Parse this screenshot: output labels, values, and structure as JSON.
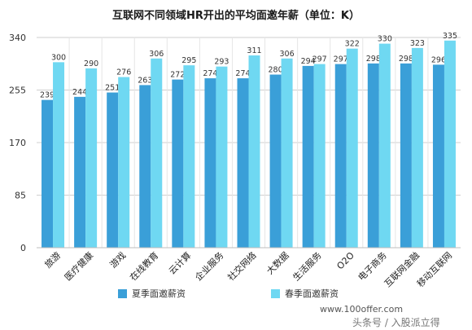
{
  "chart_data": {
    "type": "bar",
    "title": "互联网不同领域HR开出的平均面邀年薪（单位：K）",
    "categories": [
      "旅游",
      "医疗健康",
      "游戏",
      "在线教育",
      "云计算",
      "企业服务",
      "社交网络",
      "大数据",
      "生活服务",
      "O2O",
      "电子商务",
      "互联网金融",
      "移动互联网"
    ],
    "series": [
      {
        "name": "夏季面邀薪资",
        "values": [
          239,
          244,
          251,
          263,
          272,
          274,
          274,
          280,
          294,
          297,
          298,
          298,
          296
        ],
        "color": "#3a9fd8"
      },
      {
        "name": "春季面邀薪资",
        "values": [
          300,
          290,
          276,
          306,
          295,
          293,
          311,
          306,
          297,
          322,
          330,
          323,
          335
        ],
        "color": "#6fd8f2"
      }
    ],
    "ylim": [
      0,
      340
    ],
    "yticks": [
      "0",
      "85",
      "170",
      "255",
      "340"
    ],
    "grid": true,
    "legend_position": "bottom"
  },
  "footer": {
    "website": "www.100offer.com",
    "watermark": "头条号 / 入股派立得"
  }
}
